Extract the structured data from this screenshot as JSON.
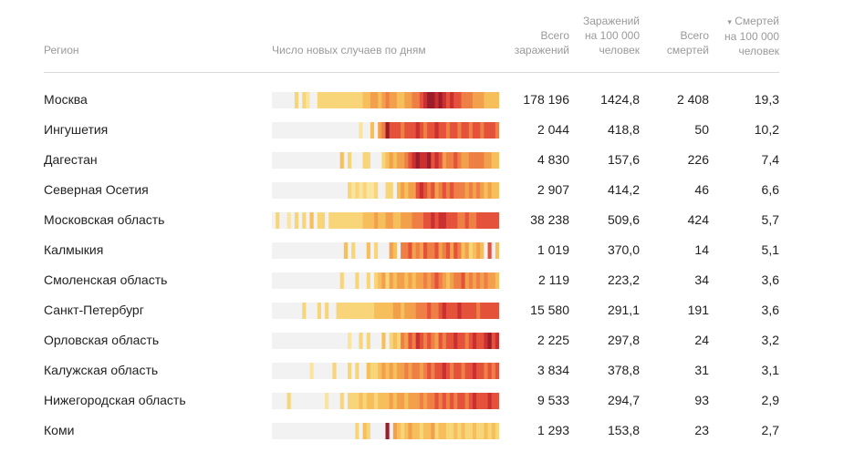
{
  "headers": {
    "region": "Регион",
    "spark": "Число новых случаев по дням",
    "total_cases": [
      "Всего",
      "заражений"
    ],
    "cases_per_100k": [
      "Заражений",
      "на 100 000",
      "человек"
    ],
    "total_deaths": [
      "Всего",
      "смертей"
    ],
    "deaths_per_100k_arrow": "▾",
    "deaths_per_100k": [
      "Смертей",
      "на 100 000",
      "человек"
    ]
  },
  "colors": {
    "empty": "#f2f2f2",
    "level1": "#fbe3a0",
    "level2": "#f9d57a",
    "level3": "#f6bf5c",
    "level4": "#f3a04d",
    "level5": "#ee7f45",
    "level6": "#e4523b",
    "level7": "#c9302f",
    "level8": "#9c1c2a"
  },
  "chart_data": {
    "type": "table",
    "rows": [
      {
        "region": "Москва",
        "total_cases": "178 196",
        "cases_per_100k": "1424,8",
        "total_deaths": "2 408",
        "deaths_per_100k": "19,3",
        "daily_levels": [
          0,
          0,
          0,
          0,
          0,
          0,
          2,
          0,
          2,
          1,
          0,
          0,
          2,
          2,
          2,
          2,
          2,
          2,
          2,
          2,
          2,
          2,
          2,
          2,
          3,
          3,
          4,
          4,
          3,
          4,
          5,
          4,
          4,
          3,
          3,
          4,
          4,
          5,
          5,
          6,
          7,
          8,
          8,
          7,
          8,
          7,
          6,
          7,
          6,
          6,
          5,
          5,
          5,
          4,
          4,
          4,
          3,
          3,
          3,
          3
        ]
      },
      {
        "region": "Ингушетия",
        "total_cases": "2 044",
        "cases_per_100k": "418,8",
        "total_deaths": "50",
        "deaths_per_100k": "10,2",
        "daily_levels": [
          0,
          0,
          0,
          0,
          0,
          0,
          0,
          0,
          0,
          0,
          0,
          0,
          0,
          0,
          0,
          0,
          0,
          0,
          0,
          0,
          0,
          0,
          0,
          1,
          0,
          0,
          3,
          0,
          4,
          5,
          8,
          6,
          6,
          6,
          5,
          6,
          6,
          6,
          7,
          6,
          5,
          6,
          6,
          7,
          6,
          6,
          5,
          6,
          6,
          5,
          6,
          6,
          5,
          6,
          6,
          5,
          6,
          6,
          6,
          5
        ]
      },
      {
        "region": "Дагестан",
        "total_cases": "4 830",
        "cases_per_100k": "157,6",
        "total_deaths": "226",
        "deaths_per_100k": "7,4",
        "daily_levels": [
          0,
          0,
          0,
          0,
          0,
          0,
          0,
          0,
          0,
          0,
          0,
          0,
          0,
          0,
          0,
          0,
          0,
          0,
          3,
          0,
          2,
          0,
          0,
          0,
          2,
          2,
          0,
          0,
          0,
          2,
          3,
          4,
          3,
          4,
          4,
          5,
          6,
          7,
          8,
          7,
          7,
          8,
          6,
          7,
          6,
          4,
          5,
          5,
          6,
          5,
          4,
          4,
          5,
          5,
          5,
          5,
          4,
          4,
          3,
          3
        ]
      },
      {
        "region": "Северная Осетия",
        "total_cases": "2 907",
        "cases_per_100k": "414,2",
        "total_deaths": "46",
        "deaths_per_100k": "6,6",
        "daily_levels": [
          0,
          0,
          0,
          0,
          0,
          0,
          0,
          0,
          0,
          0,
          0,
          0,
          0,
          0,
          0,
          0,
          0,
          0,
          0,
          0,
          2,
          1,
          2,
          1,
          2,
          1,
          1,
          2,
          0,
          0,
          2,
          2,
          0,
          3,
          4,
          3,
          4,
          4,
          6,
          7,
          6,
          5,
          6,
          4,
          5,
          6,
          5,
          6,
          5,
          5,
          5,
          4,
          5,
          4,
          5,
          4,
          3,
          4,
          3,
          3
        ]
      },
      {
        "region": "Московская область",
        "total_cases": "38 238",
        "cases_per_100k": "509,6",
        "total_deaths": "424",
        "deaths_per_100k": "5,7",
        "daily_levels": [
          0,
          2,
          0,
          0,
          1,
          0,
          2,
          0,
          2,
          0,
          3,
          0,
          2,
          2,
          0,
          2,
          2,
          2,
          2,
          2,
          2,
          2,
          2,
          2,
          3,
          3,
          3,
          4,
          3,
          3,
          4,
          4,
          3,
          3,
          4,
          4,
          4,
          5,
          5,
          5,
          6,
          6,
          7,
          6,
          7,
          7,
          6,
          6,
          6,
          5,
          5,
          6,
          5,
          5,
          6,
          6,
          6,
          6,
          6,
          6
        ]
      },
      {
        "region": "Калмыкия",
        "total_cases": "1 019",
        "cases_per_100k": "370,0",
        "total_deaths": "14",
        "deaths_per_100k": "5,1",
        "daily_levels": [
          0,
          0,
          0,
          0,
          0,
          0,
          0,
          0,
          0,
          0,
          0,
          0,
          0,
          0,
          0,
          0,
          0,
          0,
          0,
          3,
          0,
          2,
          0,
          0,
          0,
          3,
          0,
          2,
          0,
          0,
          0,
          4,
          3,
          0,
          5,
          5,
          6,
          4,
          5,
          4,
          6,
          5,
          5,
          6,
          4,
          5,
          6,
          4,
          6,
          5,
          3,
          4,
          2,
          3,
          4,
          3,
          0,
          6,
          0,
          3
        ]
      },
      {
        "region": "Смоленская область",
        "total_cases": "2 119",
        "cases_per_100k": "223,2",
        "total_deaths": "34",
        "deaths_per_100k": "3,6",
        "daily_levels": [
          0,
          0,
          0,
          0,
          0,
          0,
          0,
          0,
          0,
          0,
          0,
          0,
          0,
          0,
          0,
          0,
          0,
          0,
          2,
          0,
          0,
          0,
          2,
          0,
          0,
          2,
          0,
          2,
          3,
          4,
          2,
          4,
          3,
          4,
          4,
          3,
          4,
          3,
          4,
          4,
          5,
          4,
          5,
          6,
          5,
          4,
          3,
          4,
          5,
          5,
          6,
          4,
          5,
          4,
          5,
          4,
          5,
          4,
          4,
          3
        ]
      },
      {
        "region": "Санкт-Петербург",
        "total_cases": "15 580",
        "cases_per_100k": "291,1",
        "total_deaths": "191",
        "deaths_per_100k": "3,6",
        "daily_levels": [
          0,
          0,
          0,
          0,
          0,
          0,
          0,
          0,
          2,
          0,
          0,
          0,
          2,
          0,
          2,
          0,
          0,
          2,
          2,
          2,
          2,
          2,
          2,
          2,
          2,
          2,
          2,
          3,
          3,
          3,
          3,
          3,
          4,
          4,
          3,
          4,
          4,
          4,
          5,
          5,
          5,
          6,
          5,
          5,
          6,
          7,
          6,
          6,
          6,
          7,
          6,
          6,
          6,
          6,
          5,
          6,
          6,
          6,
          6,
          6
        ]
      },
      {
        "region": "Орловская область",
        "total_cases": "2 225",
        "cases_per_100k": "297,8",
        "total_deaths": "24",
        "deaths_per_100k": "3,2",
        "daily_levels": [
          0,
          0,
          0,
          0,
          0,
          0,
          0,
          0,
          0,
          0,
          0,
          0,
          0,
          0,
          0,
          0,
          0,
          0,
          0,
          0,
          1,
          0,
          0,
          2,
          0,
          2,
          0,
          0,
          0,
          3,
          0,
          2,
          3,
          2,
          5,
          4,
          6,
          5,
          7,
          6,
          5,
          6,
          5,
          4,
          6,
          5,
          6,
          6,
          7,
          6,
          6,
          5,
          6,
          7,
          6,
          6,
          7,
          8,
          6,
          7
        ]
      },
      {
        "region": "Калужская область",
        "total_cases": "3 834",
        "cases_per_100k": "378,8",
        "total_deaths": "31",
        "deaths_per_100k": "3,1",
        "daily_levels": [
          0,
          0,
          0,
          0,
          0,
          0,
          0,
          0,
          0,
          0,
          1,
          0,
          0,
          0,
          0,
          0,
          2,
          0,
          0,
          0,
          2,
          0,
          2,
          0,
          0,
          3,
          2,
          2,
          3,
          4,
          3,
          4,
          3,
          4,
          4,
          5,
          4,
          5,
          5,
          4,
          5,
          6,
          5,
          6,
          6,
          7,
          6,
          5,
          6,
          6,
          5,
          6,
          6,
          7,
          6,
          6,
          5,
          6,
          5,
          6
        ]
      },
      {
        "region": "Нижегородская область",
        "total_cases": "9 533",
        "cases_per_100k": "294,7",
        "total_deaths": "93",
        "deaths_per_100k": "2,9",
        "daily_levels": [
          0,
          0,
          0,
          0,
          2,
          0,
          0,
          0,
          0,
          0,
          0,
          0,
          0,
          0,
          1,
          0,
          0,
          0,
          2,
          0,
          2,
          2,
          2,
          3,
          2,
          3,
          3,
          2,
          3,
          3,
          3,
          4,
          3,
          4,
          4,
          3,
          4,
          4,
          4,
          5,
          4,
          5,
          5,
          6,
          5,
          6,
          5,
          6,
          5,
          6,
          6,
          5,
          6,
          7,
          6,
          6,
          6,
          7,
          6,
          6
        ]
      },
      {
        "region": "Коми",
        "total_cases": "1 293",
        "cases_per_100k": "153,8",
        "total_deaths": "23",
        "deaths_per_100k": "2,7",
        "daily_levels": [
          0,
          0,
          0,
          0,
          0,
          0,
          0,
          0,
          0,
          0,
          0,
          0,
          0,
          0,
          0,
          0,
          0,
          0,
          0,
          0,
          0,
          0,
          2,
          0,
          3,
          2,
          0,
          0,
          0,
          0,
          8,
          0,
          4,
          3,
          2,
          3,
          4,
          3,
          3,
          2,
          3,
          3,
          4,
          2,
          3,
          3,
          2,
          2,
          3,
          2,
          3,
          2,
          2,
          3,
          2,
          2,
          3,
          2,
          3,
          2
        ]
      }
    ]
  }
}
